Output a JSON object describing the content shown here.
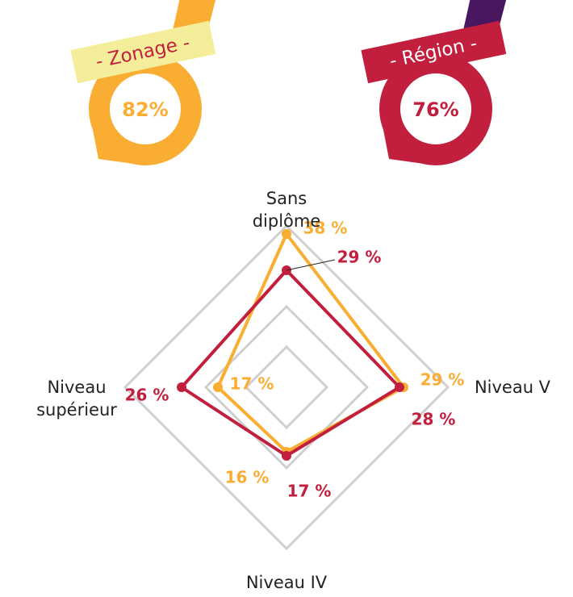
{
  "badges": [
    {
      "label": "- Zonage -",
      "text": "82%",
      "color": "#f9ae33",
      "ribbon": "#f4ee9b",
      "fold": "#f9ae33"
    },
    {
      "label": "- Région -",
      "text": "76%",
      "color": "#c21f3f",
      "ribbon": "#c21f3f",
      "fold": "#4a1660"
    }
  ],
  "chart_data": {
    "type": "radar",
    "categories": [
      "Sans diplôme",
      "Niveau V",
      "Niveau IV",
      "Niveau supérieur"
    ],
    "rlim": [
      0,
      40
    ],
    "rticks": [
      10,
      20,
      40
    ],
    "grid": true,
    "series": [
      {
        "color": "#f9ae33",
        "values": [
          38,
          29,
          16,
          17
        ],
        "value_labels": [
          "38 %",
          "29 %",
          "16 %",
          "17 %"
        ]
      },
      {
        "color": "#c21f3f",
        "values": [
          29,
          28,
          17,
          26
        ],
        "value_labels": [
          "29 %",
          "28 %",
          "17 %",
          "26 %"
        ]
      }
    ]
  }
}
